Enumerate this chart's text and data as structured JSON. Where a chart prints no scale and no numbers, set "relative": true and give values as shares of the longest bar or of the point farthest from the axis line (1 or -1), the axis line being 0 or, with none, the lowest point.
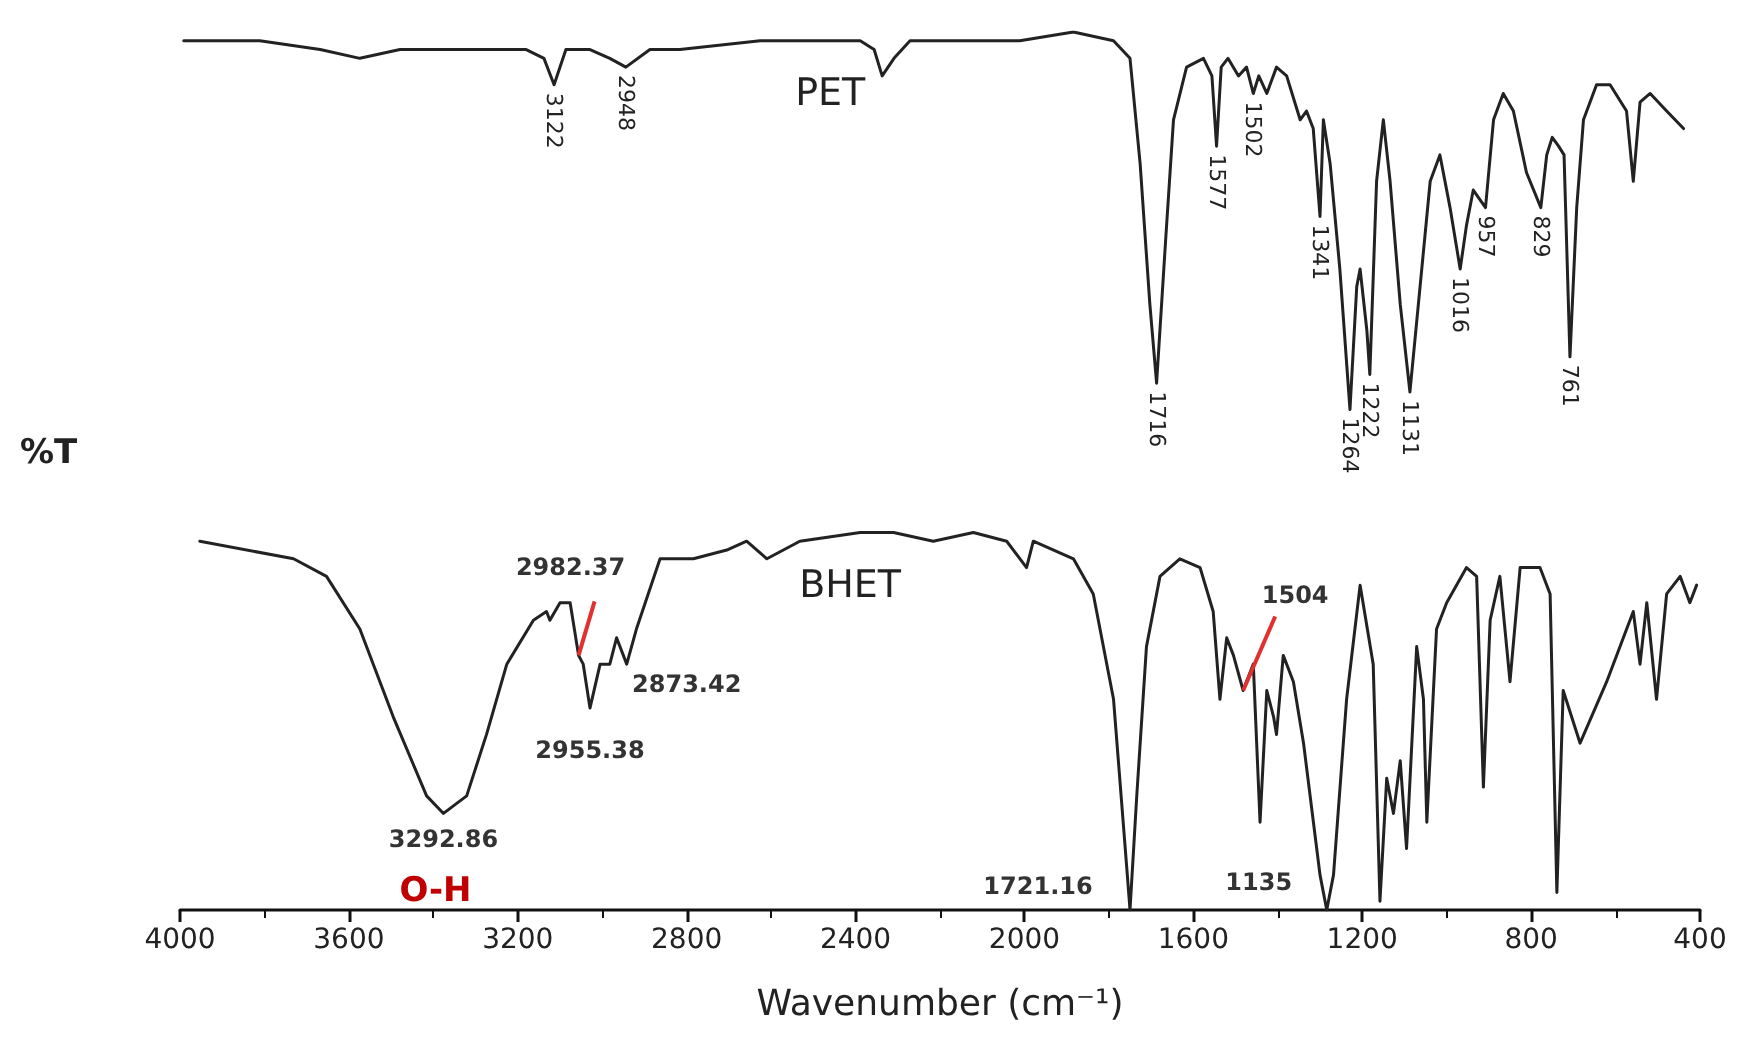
{
  "chart_data": {
    "type": "line",
    "relative": true,
    "xlabel": "Wavenumber (cm⁻¹)",
    "ylabel": "%T",
    "xlim": [
      4000,
      400
    ],
    "xticks": [
      4000,
      3600,
      3200,
      2800,
      2400,
      2000,
      1600,
      1200,
      800,
      400
    ],
    "series": [
      {
        "name": "PET",
        "color": "#222222",
        "x": [
          3991,
          3811,
          3668,
          3574,
          3479,
          3289,
          3180,
          3138,
          3114,
          3086,
          3029,
          2982,
          2944,
          2887,
          2816,
          2626,
          2389,
          2356,
          2337,
          2309,
          2271,
          2200,
          2137,
          2011,
          1884,
          1789,
          1750,
          1726,
          1703,
          1687,
          1666,
          1647,
          1616,
          1576,
          1556,
          1545,
          1534,
          1518,
          1493,
          1474,
          1458,
          1445,
          1426,
          1403,
          1379,
          1347,
          1332,
          1316,
          1300,
          1292,
          1276,
          1253,
          1229,
          1213,
          1205,
          1189,
          1182,
          1166,
          1150,
          1134,
          1110,
          1087,
          1063,
          1039,
          1016,
          992,
          968,
          953,
          937,
          908,
          889,
          866,
          842,
          811,
          777,
          763,
          750,
          735,
          722,
          708,
          692,
          676,
          645,
          613,
          574,
          558,
          542,
          518,
          479,
          439
        ],
        "values": [
          0.99,
          0.99,
          0.98,
          0.97,
          0.98,
          0.98,
          0.98,
          0.97,
          0.94,
          0.98,
          0.98,
          0.97,
          0.96,
          0.98,
          0.98,
          0.99,
          0.99,
          0.98,
          0.95,
          0.97,
          0.99,
          0.99,
          0.99,
          0.99,
          1.0,
          0.99,
          0.97,
          0.85,
          0.69,
          0.6,
          0.76,
          0.9,
          0.96,
          0.97,
          0.95,
          0.87,
          0.96,
          0.97,
          0.95,
          0.96,
          0.93,
          0.95,
          0.93,
          0.96,
          0.95,
          0.9,
          0.91,
          0.89,
          0.79,
          0.9,
          0.85,
          0.73,
          0.57,
          0.71,
          0.73,
          0.66,
          0.61,
          0.83,
          0.9,
          0.83,
          0.69,
          0.59,
          0.71,
          0.83,
          0.86,
          0.8,
          0.73,
          0.78,
          0.82,
          0.8,
          0.9,
          0.93,
          0.91,
          0.84,
          0.8,
          0.86,
          0.88,
          0.87,
          0.86,
          0.63,
          0.8,
          0.9,
          0.94,
          0.94,
          0.91,
          0.83,
          0.92,
          0.93,
          0.91,
          0.89
        ]
      },
      {
        "name": "BHET",
        "color": "#222222",
        "x": [
          3953,
          3731,
          3653,
          3574,
          3495,
          3416,
          3376,
          3321,
          3274,
          3226,
          3163,
          3132,
          3124,
          3100,
          3076,
          3056,
          3045,
          3029,
          3005,
          2982,
          2966,
          2942,
          2919,
          2863,
          2784,
          2705,
          2658,
          2610,
          2532,
          2389,
          2310,
          2216,
          2121,
          2042,
          1995,
          1979,
          1884,
          1837,
          1789,
          1758,
          1750,
          1734,
          1711,
          1679,
          1632,
          1584,
          1553,
          1537,
          1521,
          1505,
          1482,
          1458,
          1442,
          1426,
          1410,
          1403,
          1387,
          1363,
          1339,
          1300,
          1284,
          1268,
          1237,
          1205,
          1174,
          1158,
          1142,
          1126,
          1110,
          1095,
          1071,
          1055,
          1047,
          1024,
          1000,
          953,
          929,
          913,
          897,
          874,
          850,
          826,
          779,
          755,
          739,
          724,
          684,
          621,
          558,
          542,
          526,
          503,
          479,
          447,
          424,
          408
        ],
        "values": [
          0.42,
          0.4,
          0.38,
          0.32,
          0.22,
          0.13,
          0.11,
          0.13,
          0.2,
          0.28,
          0.33,
          0.34,
          0.33,
          0.35,
          0.35,
          0.29,
          0.28,
          0.23,
          0.28,
          0.28,
          0.31,
          0.28,
          0.32,
          0.4,
          0.4,
          0.41,
          0.42,
          0.4,
          0.42,
          0.43,
          0.43,
          0.42,
          0.43,
          0.42,
          0.39,
          0.42,
          0.4,
          0.36,
          0.24,
          0.05,
          0.0,
          0.13,
          0.3,
          0.38,
          0.4,
          0.39,
          0.34,
          0.24,
          0.31,
          0.29,
          0.25,
          0.28,
          0.1,
          0.25,
          0.22,
          0.2,
          0.29,
          0.26,
          0.19,
          0.04,
          0.0,
          0.04,
          0.24,
          0.37,
          0.28,
          0.01,
          0.15,
          0.11,
          0.17,
          0.07,
          0.3,
          0.24,
          0.1,
          0.32,
          0.35,
          0.39,
          0.38,
          0.14,
          0.33,
          0.38,
          0.26,
          0.39,
          0.39,
          0.36,
          0.02,
          0.25,
          0.19,
          0.26,
          0.34,
          0.28,
          0.35,
          0.24,
          0.36,
          0.38,
          0.35,
          0.37
        ]
      }
    ],
    "annotations": [
      {
        "text": "3122",
        "x": 3114,
        "y": 0.94
      },
      {
        "text": "2948",
        "x": 2944,
        "y": 0.96
      },
      {
        "text": "1716",
        "x": 1687,
        "y": 0.6
      },
      {
        "text": "1577",
        "x": 1545,
        "y": 0.87
      },
      {
        "text": "1502",
        "x": 1458,
        "y": 0.93
      },
      {
        "text": "1341",
        "x": 1300,
        "y": 0.79
      },
      {
        "text": "1264",
        "x": 1229,
        "y": 0.57
      },
      {
        "text": "1222",
        "x": 1182,
        "y": 0.61
      },
      {
        "text": "1131",
        "x": 1087,
        "y": 0.59
      },
      {
        "text": "1016",
        "x": 968,
        "y": 0.73
      },
      {
        "text": "957",
        "x": 908,
        "y": 0.8
      },
      {
        "text": "829",
        "x": 777,
        "y": 0.8
      },
      {
        "text": "761",
        "x": 708,
        "y": 0.63
      },
      {
        "text": "2982.37",
        "x": 3056,
        "y": 0.29
      },
      {
        "text": "2955.38",
        "x": 3029,
        "y": 0.23
      },
      {
        "text": "2873.42",
        "x": 2942,
        "y": 0.28
      },
      {
        "text": "3292.86",
        "x": 3376,
        "y": 0.11
      },
      {
        "text": "O-H",
        "x": 3376,
        "y": 0.11
      },
      {
        "text": "1721.16",
        "x": 1750,
        "y": 0.0
      },
      {
        "text": "1504",
        "x": 1482,
        "y": 0.25
      },
      {
        "text": "1135",
        "x": 1284,
        "y": 0.0
      }
    ]
  }
}
